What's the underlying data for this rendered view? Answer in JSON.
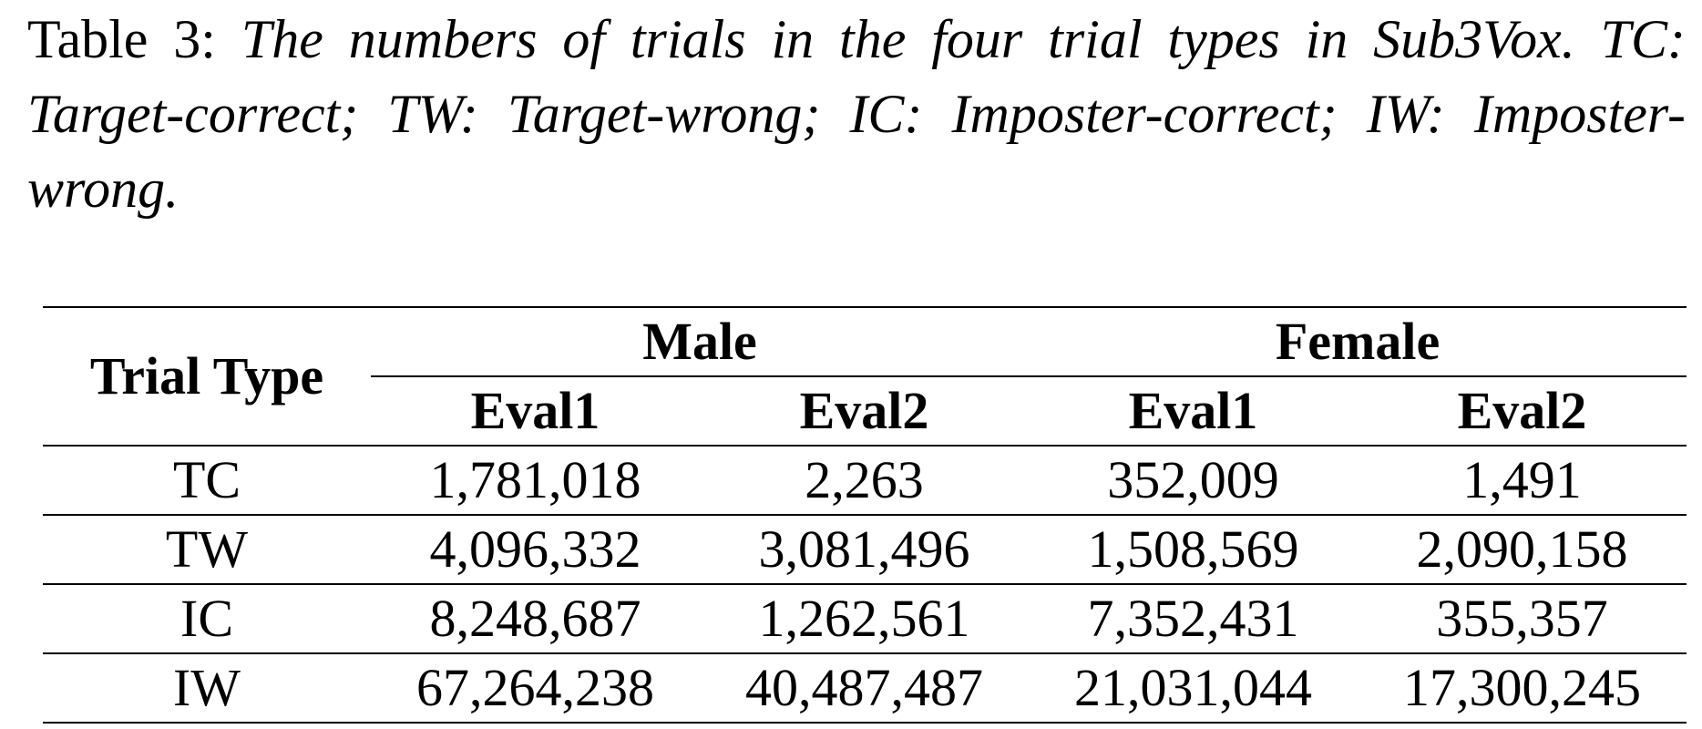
{
  "caption": {
    "label": "Table 3:",
    "text": "The numbers of trials in the four trial types in Sub3Vox. TC: Target-correct; TW: Target-wrong; IC: Imposter-correct; IW: Imposter-wrong."
  },
  "table": {
    "row_header": "Trial Type",
    "groups": [
      "Male",
      "Female"
    ],
    "subheaders": [
      "Eval1",
      "Eval2",
      "Eval1",
      "Eval2"
    ],
    "rows": [
      {
        "type": "TC",
        "values": [
          "1,781,018",
          "2,263",
          "352,009",
          "1,491"
        ]
      },
      {
        "type": "TW",
        "values": [
          "4,096,332",
          "3,081,496",
          "1,508,569",
          "2,090,158"
        ]
      },
      {
        "type": "IC",
        "values": [
          "8,248,687",
          "1,262,561",
          "7,352,431",
          "355,357"
        ]
      },
      {
        "type": "IW",
        "values": [
          "67,264,238",
          "40,487,487",
          "21,031,044",
          "17,300,245"
        ]
      }
    ]
  }
}
